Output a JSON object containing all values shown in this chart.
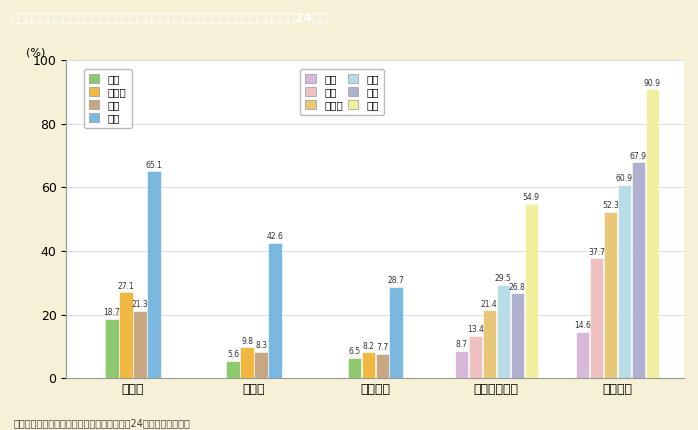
{
  "title": "第１－７－５図　本務教員総数に占める女性の割合（初等中等教育，高等教育，平成24年）",
  "ylabel": "(%)",
  "footnote": "（備考）文部科学省「学校基本調査」（平成24年度）より作成。",
  "categories": [
    "小学校",
    "中学校",
    "高等学校",
    "大学・大学院",
    "短期大学"
  ],
  "shoto_labels": [
    "校長",
    "副校長",
    "教頭",
    "教諭"
  ],
  "koto_labels": [
    "学長",
    "教授",
    "准教授",
    "講師",
    "助教",
    "助手"
  ],
  "shoto_colors": [
    "#8dc96e",
    "#f0b840",
    "#c8a882",
    "#7ab8e0"
  ],
  "koto_colors": [
    "#d8b8d8",
    "#f0c0c0",
    "#e8c878",
    "#b8dce8",
    "#b0b0d0",
    "#f0f0a0"
  ],
  "shoto_data": [
    [
      18.7,
      5.6,
      6.5
    ],
    [
      27.1,
      9.8,
      8.2
    ],
    [
      21.3,
      8.3,
      7.7
    ],
    [
      65.1,
      42.6,
      28.7
    ]
  ],
  "koto_data": [
    [
      8.7,
      14.6
    ],
    [
      13.4,
      37.7
    ],
    [
      21.4,
      52.3
    ],
    [
      29.5,
      60.9
    ],
    [
      26.8,
      67.9
    ],
    [
      54.9,
      90.9
    ]
  ],
  "ylim": [
    0,
    100
  ],
  "yticks": [
    0,
    20,
    40,
    60,
    80,
    100
  ],
  "background_color": "#f5f0d6",
  "chart_bg": "#ffffff",
  "title_bg": "#7a5c2e",
  "title_color": "#ffffff",
  "bar_width": 0.11,
  "cat_positions": [
    0,
    1,
    2,
    3,
    4
  ]
}
